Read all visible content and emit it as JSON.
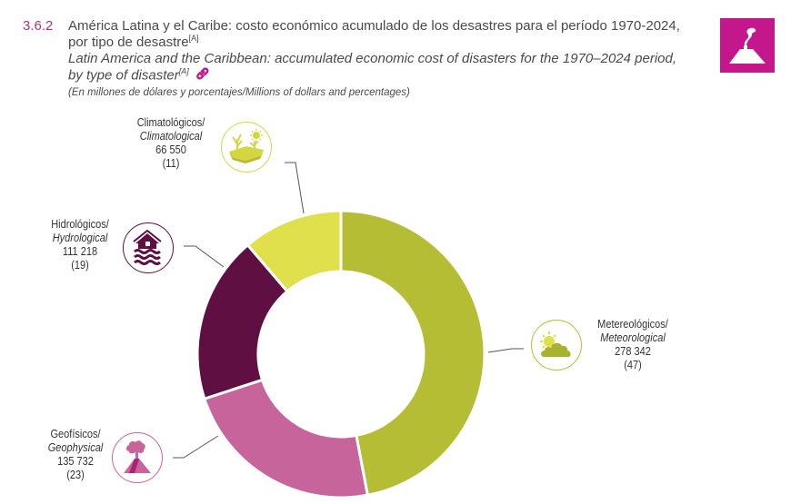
{
  "header": {
    "figure_number": "3.6.2",
    "title_es": "América Latina y el Caribe: costo económico acumulado de los desastres para el período 1970-2024,",
    "title_es_line2": "por tipo de desastre",
    "title_en": "Latin America and the Caribbean: accumulated economic cost of disasters for the 1970–2024 period,",
    "title_en_line2": "by type of disaster",
    "footnote_marker": "[A]",
    "subtitle": "(En millones de dólares y porcentajes/Millions of dollars and percentages)",
    "badge_icon": "volcano-icon",
    "badge_color": "#c4178c",
    "accent_color": "#b5307a"
  },
  "chart_data": {
    "type": "pie",
    "variant": "donut",
    "title": "América Latina y el Caribe: costo económico acumulado de los desastres para el período 1970-2024, por tipo de desastre",
    "unit": "Millions of dollars and percentages",
    "start": "top",
    "direction": "clockwise",
    "slices": [
      {
        "name_es": "Metereológicos/",
        "name_en": "Meteorological",
        "value": 278342,
        "value_label": "278 342",
        "percent": 47,
        "percent_label": "(47)",
        "color": "#b5bd35",
        "icon": "sun-cloud-icon",
        "label_position": "right"
      },
      {
        "name_es": "Geofísicos/",
        "name_en": "Geophysical",
        "value": 135732,
        "value_label": "135 732",
        "percent": 23,
        "percent_label": "(23)",
        "color": "#c6649b",
        "icon": "volcano-icon",
        "label_position": "bottom-left"
      },
      {
        "name_es": "Hidrológicos/",
        "name_en": "Hydrological",
        "value": 111218,
        "value_label": "111 218",
        "percent": 19,
        "percent_label": "(19)",
        "color": "#600f42",
        "icon": "flooded-house-icon",
        "label_position": "left"
      },
      {
        "name_es": "Climatológicos/",
        "name_en": "Climatological",
        "value": 66550,
        "value_label": "66 550",
        "percent": 11,
        "percent_label": "(11)",
        "color": "#dfe04c",
        "icon": "drought-icon",
        "label_position": "top-left"
      }
    ]
  }
}
